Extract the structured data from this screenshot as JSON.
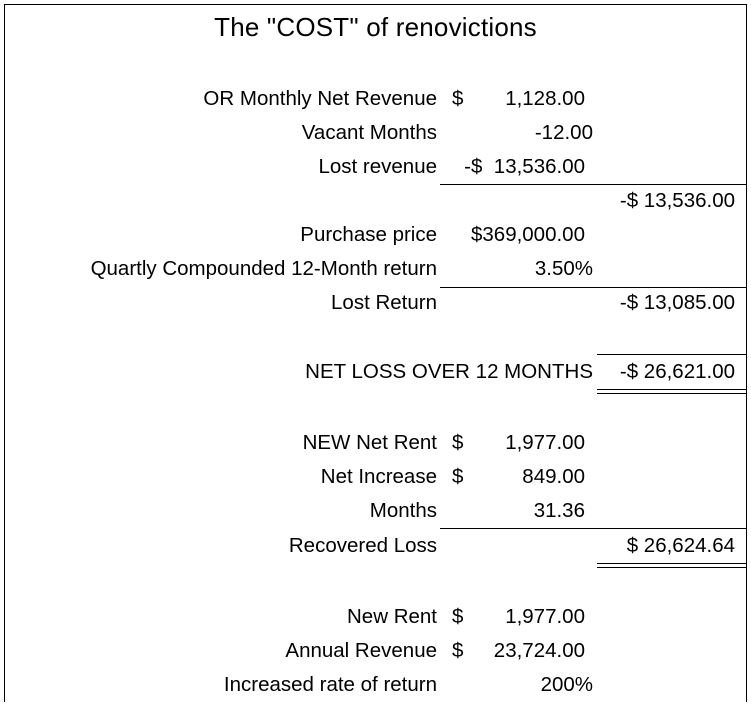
{
  "title": "The \"COST\" of renovictions",
  "rows": {
    "r1": {
      "label": "OR Monthly Net Revenue",
      "currency": "$",
      "amount": "1,128.00"
    },
    "r2": {
      "label": "Vacant Months",
      "amount": "-12.00"
    },
    "r3": {
      "label": "Lost revenue",
      "amount": "-$  13,536.00"
    },
    "r4": {
      "total": "-$ 13,536.00"
    },
    "r5": {
      "label": "Purchase price",
      "amount": "$369,000.00"
    },
    "r6": {
      "label": "Quartly Compounded 12-Month return",
      "amount": "3.50%"
    },
    "r7": {
      "label": "Lost Return",
      "total": "-$ 13,085.00"
    },
    "r8": {
      "label": "NET LOSS OVER 12 MONTHS",
      "total": "-$ 26,621.00"
    },
    "r9": {
      "label": "NEW Net Rent",
      "currency": "$",
      "amount": "1,977.00"
    },
    "r10": {
      "label": "Net Increase",
      "currency": "$",
      "amount": "849.00"
    },
    "r11": {
      "label": "Months",
      "amount": "31.36"
    },
    "r12": {
      "label": "Recovered Loss",
      "total": "$ 26,624.64"
    },
    "r13": {
      "label": "New Rent",
      "currency": "$",
      "amount": "1,977.00"
    },
    "r14": {
      "label": "Annual Revenue",
      "currency": "$",
      "amount": "23,724.00"
    },
    "r15": {
      "label": "Increased rate of return",
      "amount": "200%"
    }
  }
}
